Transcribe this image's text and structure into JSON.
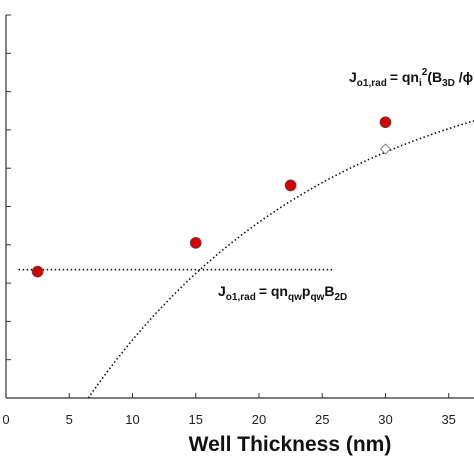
{
  "chart_data": {
    "type": "scatter",
    "title": "",
    "xlabel": "Well Thickness (nm)",
    "ylabel": "",
    "xlim": [
      0,
      37
    ],
    "ylim": [
      0,
      10
    ],
    "x_ticks": [
      "0",
      "5",
      "10",
      "15",
      "20",
      "25",
      "30",
      "35"
    ],
    "x_tick_values": [
      0,
      5,
      10,
      15,
      20,
      25,
      30,
      35
    ],
    "y_tick_values": [
      0,
      1,
      2,
      3,
      4,
      5,
      6,
      7,
      8,
      9,
      10
    ],
    "grid": false,
    "series": [
      {
        "marker": "circle",
        "color": "#d40000",
        "points": [
          {
            "x": 2.5,
            "y": 3.3
          },
          {
            "x": 15,
            "y": 4.05
          },
          {
            "x": 22.5,
            "y": 5.55
          },
          {
            "x": 30,
            "y": 7.2
          }
        ]
      },
      {
        "marker": "diamond",
        "color": "#ffffff",
        "points": [
          {
            "x": 30,
            "y": 6.5
          }
        ]
      }
    ],
    "fit_lines": [
      {
        "kind": "constant",
        "x_range": [
          1,
          26
        ],
        "y": 3.35,
        "style": "dotted"
      },
      {
        "kind": "saturating",
        "x_range": [
          6.5,
          37
        ],
        "asymptote": 9.1,
        "amplitude": 9.1,
        "x0": 6.5,
        "rate": 0.052,
        "style": "dotted"
      }
    ],
    "annotations": [
      {
        "id": "eq_3d",
        "base": "J",
        "sub": "o1,rad",
        "rhs": "= qn",
        "rhs_sub": "i",
        "rhs_sup": "2",
        "tail": "(B",
        "tail_sub": "3D",
        "tail_end": " /ϕ"
      },
      {
        "id": "eq_2d",
        "base": "J",
        "sub": "o1,rad",
        "rhs": "= qn",
        "rhs_sub": "qw",
        "mid": "p",
        "mid_sub": "qw",
        "tail": "B",
        "tail_sub": "2D"
      }
    ]
  }
}
